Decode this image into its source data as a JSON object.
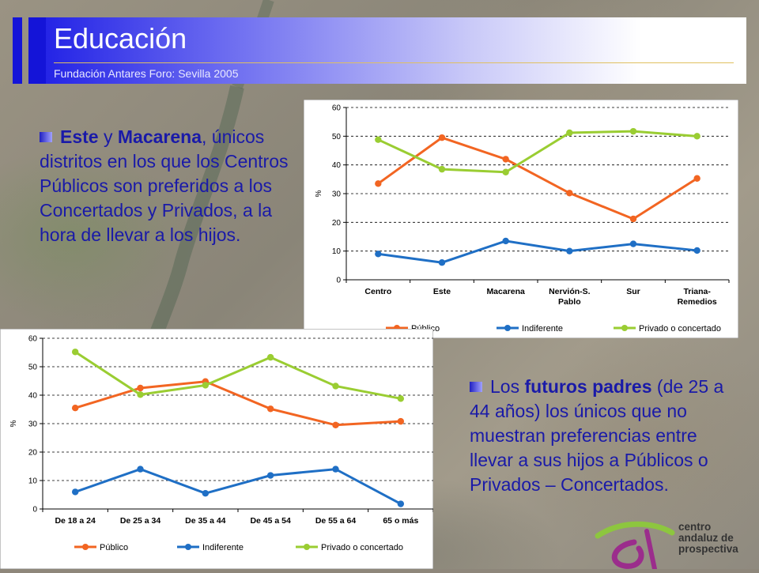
{
  "header": {
    "title": "Educación",
    "subtitle": "Fundación Antares Foro: Sevilla 2005"
  },
  "text_block_1": {
    "bold1": "Este",
    "mid1": " y ",
    "bold2": "Macarena",
    "rest": ", únicos distritos en los que los Centros Públicos son preferidos a los Concertados y Privados, a la hora de llevar a los hijos."
  },
  "text_block_2": {
    "pre": "Los ",
    "bold": "futuros padres",
    "rest": " (de 25 a 44 años) los únicos que no muestran preferencias entre llevar a sus hijos a Públicos o Privados – Concertados."
  },
  "logo": {
    "line1": "centro",
    "line2": "andaluz de",
    "line3": "prospectiva"
  },
  "colors": {
    "publico": "#f26522",
    "indiferente": "#1f6fc5",
    "privado": "#9acd32"
  },
  "chart_data": [
    {
      "type": "line",
      "ylabel": "%",
      "ylim": [
        0,
        60
      ],
      "yticks": [
        0,
        10,
        20,
        30,
        40,
        50,
        60
      ],
      "categories": [
        [
          "Centro"
        ],
        [
          "Este"
        ],
        [
          "Macarena"
        ],
        [
          "Nervión-S.",
          "Pablo"
        ],
        [
          "Sur"
        ],
        [
          "Triana-",
          "Remedios"
        ]
      ],
      "series": [
        {
          "name": "Público",
          "color": "#f26522",
          "values": [
            33.5,
            49.5,
            42,
            30.2,
            21.2,
            35.3
          ]
        },
        {
          "name": "Indiferente",
          "color": "#1f6fc5",
          "values": [
            9,
            6,
            13.5,
            10,
            12.5,
            10.2
          ]
        },
        {
          "name": "Privado o concertado",
          "color": "#9acd32",
          "values": [
            48.8,
            38.5,
            37.5,
            51.2,
            51.7,
            50
          ]
        }
      ],
      "grid": true,
      "legend": "bottom"
    },
    {
      "type": "line",
      "ylabel": "%",
      "ylim": [
        0,
        60
      ],
      "yticks": [
        0,
        10,
        20,
        30,
        40,
        50,
        60
      ],
      "categories": [
        [
          "De 18 a 24"
        ],
        [
          "De 25 a 34"
        ],
        [
          "De 35 a 44"
        ],
        [
          "De 45 a 54"
        ],
        [
          "De 55 a 64"
        ],
        [
          "65 o más"
        ]
      ],
      "series": [
        {
          "name": "Público",
          "color": "#f26522",
          "values": [
            35.5,
            42.5,
            44.8,
            35.2,
            29.5,
            30.8
          ]
        },
        {
          "name": "Indiferente",
          "color": "#1f6fc5",
          "values": [
            6,
            14,
            5.5,
            11.8,
            14,
            1.8
          ]
        },
        {
          "name": "Privado o concertado",
          "color": "#9acd32",
          "values": [
            55.2,
            40.2,
            43.5,
            53.3,
            43.2,
            38.8
          ]
        }
      ],
      "grid": true,
      "legend": "bottom"
    }
  ]
}
